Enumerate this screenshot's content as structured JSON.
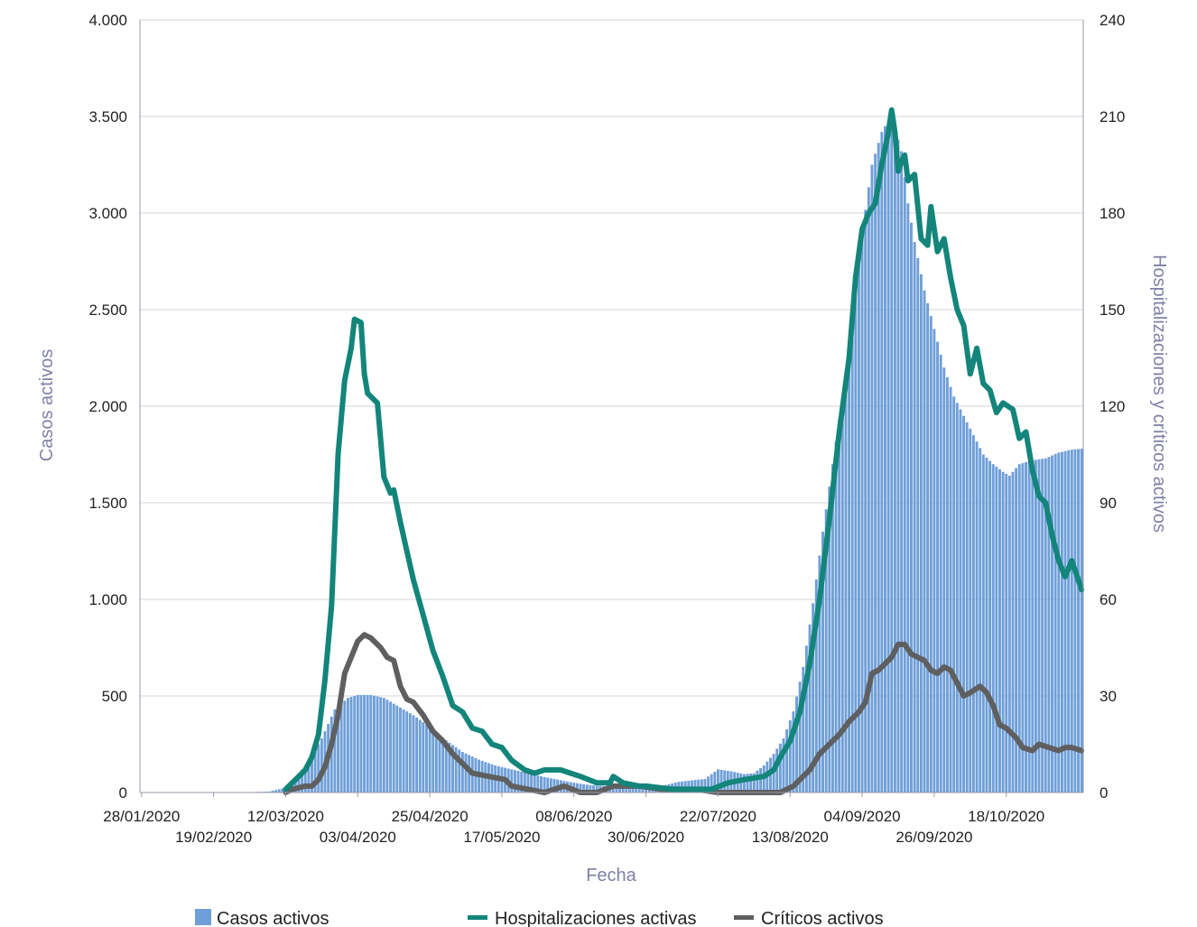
{
  "chart_data": {
    "type": "bar",
    "xlabel": "Fecha",
    "ylabel": "Casos activos",
    "y2label": "Hospitalizaciones y críticos activos",
    "x_start": "28/01/2020",
    "x_end": "10/11/2020",
    "x_tick_labels": [
      "28/01/2020",
      "19/02/2020",
      "12/03/2020",
      "03/04/2020",
      "25/04/2020",
      "17/05/2020",
      "08/06/2020",
      "30/06/2020",
      "22/07/2020",
      "13/08/2020",
      "04/09/2020",
      "26/09/2020",
      "18/10/2020"
    ],
    "ylim": [
      0,
      4000
    ],
    "y_ticks": [
      0,
      500,
      1000,
      1500,
      2000,
      2500,
      3000,
      3500,
      4000
    ],
    "y_tick_labels": [
      "0",
      "500",
      "1.000",
      "1.500",
      "2.000",
      "2.500",
      "3.000",
      "3.500",
      "4.000"
    ],
    "y2lim": [
      0,
      240
    ],
    "y2_ticks": [
      0,
      30,
      60,
      90,
      120,
      150,
      180,
      210,
      240
    ],
    "y2_tick_labels": [
      "0",
      "30",
      "60",
      "90",
      "120",
      "150",
      "180",
      "210",
      "240"
    ],
    "grid": true,
    "legend_position": "bottom",
    "series": [
      {
        "name": "Casos activos",
        "type": "bar",
        "axis": "left",
        "color": "#6f9fd8",
        "points": [
          [
            "28/01/2020",
            0
          ],
          [
            "26/02/2020",
            0
          ],
          [
            "07/03/2020",
            5
          ],
          [
            "12/03/2020",
            25
          ],
          [
            "15/03/2020",
            80
          ],
          [
            "19/03/2020",
            160
          ],
          [
            "23/03/2020",
            280
          ],
          [
            "27/03/2020",
            430
          ],
          [
            "31/03/2020",
            490
          ],
          [
            "03/04/2020",
            505
          ],
          [
            "07/04/2020",
            505
          ],
          [
            "11/04/2020",
            490
          ],
          [
            "15/04/2020",
            450
          ],
          [
            "20/04/2020",
            400
          ],
          [
            "25/04/2020",
            340
          ],
          [
            "30/04/2020",
            270
          ],
          [
            "05/05/2020",
            210
          ],
          [
            "10/05/2020",
            170
          ],
          [
            "15/05/2020",
            140
          ],
          [
            "20/05/2020",
            120
          ],
          [
            "25/05/2020",
            100
          ],
          [
            "30/05/2020",
            80
          ],
          [
            "05/06/2020",
            60
          ],
          [
            "10/06/2020",
            45
          ],
          [
            "15/06/2020",
            35
          ],
          [
            "20/06/2020",
            30
          ],
          [
            "25/06/2020",
            30
          ],
          [
            "30/06/2020",
            25
          ],
          [
            "05/07/2020",
            35
          ],
          [
            "10/07/2020",
            55
          ],
          [
            "15/07/2020",
            65
          ],
          [
            "18/07/2020",
            70
          ],
          [
            "22/07/2020",
            120
          ],
          [
            "26/07/2020",
            110
          ],
          [
            "30/07/2020",
            95
          ],
          [
            "02/08/2020",
            100
          ],
          [
            "05/08/2020",
            140
          ],
          [
            "08/08/2020",
            200
          ],
          [
            "11/08/2020",
            280
          ],
          [
            "14/08/2020",
            420
          ],
          [
            "17/08/2020",
            650
          ],
          [
            "20/08/2020",
            980
          ],
          [
            "23/08/2020",
            1350
          ],
          [
            "26/08/2020",
            1700
          ],
          [
            "29/08/2020",
            2050
          ],
          [
            "01/09/2020",
            2450
          ],
          [
            "04/09/2020",
            2900
          ],
          [
            "07/09/2020",
            3250
          ],
          [
            "10/09/2020",
            3420
          ],
          [
            "12/09/2020",
            3480
          ],
          [
            "14/09/2020",
            3440
          ],
          [
            "16/09/2020",
            3320
          ],
          [
            "18/09/2020",
            3050
          ],
          [
            "20/09/2020",
            2850
          ],
          [
            "23/09/2020",
            2600
          ],
          [
            "26/09/2020",
            2400
          ],
          [
            "29/09/2020",
            2200
          ],
          [
            "02/10/2020",
            2050
          ],
          [
            "05/10/2020",
            1950
          ],
          [
            "08/10/2020",
            1850
          ],
          [
            "11/10/2020",
            1750
          ],
          [
            "14/10/2020",
            1700
          ],
          [
            "17/10/2020",
            1660
          ],
          [
            "19/10/2020",
            1640
          ],
          [
            "22/10/2020",
            1700
          ],
          [
            "26/10/2020",
            1720
          ],
          [
            "30/10/2020",
            1730
          ],
          [
            "03/11/2020",
            1760
          ],
          [
            "07/11/2020",
            1775
          ],
          [
            "10/11/2020",
            1780
          ]
        ]
      },
      {
        "name": "Hospitalizaciones activas",
        "type": "line",
        "axis": "right",
        "color": "#13857a",
        "points": [
          [
            "12/03/2020",
            1
          ],
          [
            "14/03/2020",
            3
          ],
          [
            "16/03/2020",
            5
          ],
          [
            "18/03/2020",
            7
          ],
          [
            "20/03/2020",
            11
          ],
          [
            "22/03/2020",
            18
          ],
          [
            "24/03/2020",
            35
          ],
          [
            "26/03/2020",
            58
          ],
          [
            "28/03/2020",
            105
          ],
          [
            "30/03/2020",
            128
          ],
          [
            "01/04/2020",
            138
          ],
          [
            "02/04/2020",
            147
          ],
          [
            "04/04/2020",
            146
          ],
          [
            "05/04/2020",
            130
          ],
          [
            "06/04/2020",
            124
          ],
          [
            "08/04/2020",
            122
          ],
          [
            "09/04/2020",
            121
          ],
          [
            "11/04/2020",
            98
          ],
          [
            "13/04/2020",
            93
          ],
          [
            "14/04/2020",
            94
          ],
          [
            "16/04/2020",
            84
          ],
          [
            "18/04/2020",
            75
          ],
          [
            "20/04/2020",
            66
          ],
          [
            "23/04/2020",
            55
          ],
          [
            "26/04/2020",
            44
          ],
          [
            "29/04/2020",
            36
          ],
          [
            "02/05/2020",
            27
          ],
          [
            "05/05/2020",
            25
          ],
          [
            "08/05/2020",
            20
          ],
          [
            "11/05/2020",
            19
          ],
          [
            "14/05/2020",
            15
          ],
          [
            "17/05/2020",
            14
          ],
          [
            "20/05/2020",
            10
          ],
          [
            "24/05/2020",
            7
          ],
          [
            "27/05/2020",
            6
          ],
          [
            "30/05/2020",
            7
          ],
          [
            "04/06/2020",
            7
          ],
          [
            "07/06/2020",
            6
          ],
          [
            "10/06/2020",
            5
          ],
          [
            "15/06/2020",
            3
          ],
          [
            "19/06/2020",
            3
          ],
          [
            "20/06/2020",
            5
          ],
          [
            "23/06/2020",
            3
          ],
          [
            "28/06/2020",
            2
          ],
          [
            "30/06/2020",
            2
          ],
          [
            "08/07/2020",
            1
          ],
          [
            "20/07/2020",
            1
          ],
          [
            "25/07/2020",
            3
          ],
          [
            "30/07/2020",
            4
          ],
          [
            "05/08/2020",
            5
          ],
          [
            "08/08/2020",
            7
          ],
          [
            "10/08/2020",
            11
          ],
          [
            "13/08/2020",
            16
          ],
          [
            "16/08/2020",
            25
          ],
          [
            "19/08/2020",
            40
          ],
          [
            "22/08/2020",
            60
          ],
          [
            "25/08/2020",
            85
          ],
          [
            "28/08/2020",
            112
          ],
          [
            "31/08/2020",
            135
          ],
          [
            "02/09/2020",
            160
          ],
          [
            "04/09/2020",
            175
          ],
          [
            "06/09/2020",
            180
          ],
          [
            "08/09/2020",
            183
          ],
          [
            "10/09/2020",
            195
          ],
          [
            "12/09/2020",
            205
          ],
          [
            "13/09/2020",
            212
          ],
          [
            "14/09/2020",
            205
          ],
          [
            "15/09/2020",
            193
          ],
          [
            "16/09/2020",
            196
          ],
          [
            "17/09/2020",
            198
          ],
          [
            "18/09/2020",
            190
          ],
          [
            "20/09/2020",
            192
          ],
          [
            "22/09/2020",
            172
          ],
          [
            "24/09/2020",
            170
          ],
          [
            "25/09/2020",
            182
          ],
          [
            "27/09/2020",
            168
          ],
          [
            "29/09/2020",
            172
          ],
          [
            "01/10/2020",
            160
          ],
          [
            "03/10/2020",
            150
          ],
          [
            "05/10/2020",
            145
          ],
          [
            "07/10/2020",
            130
          ],
          [
            "09/10/2020",
            138
          ],
          [
            "11/10/2020",
            127
          ],
          [
            "13/10/2020",
            125
          ],
          [
            "15/10/2020",
            118
          ],
          [
            "17/10/2020",
            121
          ],
          [
            "20/10/2020",
            119
          ],
          [
            "22/10/2020",
            110
          ],
          [
            "24/10/2020",
            112
          ],
          [
            "26/10/2020",
            100
          ],
          [
            "28/10/2020",
            92
          ],
          [
            "30/10/2020",
            90
          ],
          [
            "01/11/2020",
            80
          ],
          [
            "03/11/2020",
            72
          ],
          [
            "05/11/2020",
            67
          ],
          [
            "07/11/2020",
            72
          ],
          [
            "09/11/2020",
            66
          ],
          [
            "10/11/2020",
            63
          ]
        ]
      },
      {
        "name": "Críticos activos",
        "type": "line",
        "axis": "right",
        "color": "#5f5f5f",
        "points": [
          [
            "12/03/2020",
            0
          ],
          [
            "14/03/2020",
            1
          ],
          [
            "18/03/2020",
            2
          ],
          [
            "20/03/2020",
            2
          ],
          [
            "22/03/2020",
            4
          ],
          [
            "24/03/2020",
            8
          ],
          [
            "26/03/2020",
            15
          ],
          [
            "28/03/2020",
            24
          ],
          [
            "30/03/2020",
            37
          ],
          [
            "01/04/2020",
            42
          ],
          [
            "03/04/2020",
            47
          ],
          [
            "05/04/2020",
            49
          ],
          [
            "07/04/2020",
            48
          ],
          [
            "10/04/2020",
            45
          ],
          [
            "12/04/2020",
            42
          ],
          [
            "14/04/2020",
            41
          ],
          [
            "16/04/2020",
            33
          ],
          [
            "18/04/2020",
            29
          ],
          [
            "20/04/2020",
            28
          ],
          [
            "23/04/2020",
            24
          ],
          [
            "26/04/2020",
            19
          ],
          [
            "29/04/2020",
            16
          ],
          [
            "02/05/2020",
            12
          ],
          [
            "05/05/2020",
            9
          ],
          [
            "08/05/2020",
            6
          ],
          [
            "13/05/2020",
            5
          ],
          [
            "18/05/2020",
            4
          ],
          [
            "20/05/2020",
            2
          ],
          [
            "25/05/2020",
            1
          ],
          [
            "30/05/2020",
            0
          ],
          [
            "05/06/2020",
            2
          ],
          [
            "10/06/2020",
            0
          ],
          [
            "15/06/2020",
            0
          ],
          [
            "20/06/2020",
            2
          ],
          [
            "28/06/2020",
            2
          ],
          [
            "05/07/2020",
            1
          ],
          [
            "15/07/2020",
            1
          ],
          [
            "22/07/2020",
            0
          ],
          [
            "30/07/2020",
            0
          ],
          [
            "06/08/2020",
            0
          ],
          [
            "10/08/2020",
            0
          ],
          [
            "14/08/2020",
            2
          ],
          [
            "16/08/2020",
            4
          ],
          [
            "19/08/2020",
            7
          ],
          [
            "22/08/2020",
            12
          ],
          [
            "25/08/2020",
            15
          ],
          [
            "28/08/2020",
            18
          ],
          [
            "31/08/2020",
            22
          ],
          [
            "03/09/2020",
            25
          ],
          [
            "05/09/2020",
            28
          ],
          [
            "07/09/2020",
            37
          ],
          [
            "09/09/2020",
            38
          ],
          [
            "11/09/2020",
            40
          ],
          [
            "13/09/2020",
            42
          ],
          [
            "15/09/2020",
            46
          ],
          [
            "17/09/2020",
            46
          ],
          [
            "19/09/2020",
            43
          ],
          [
            "21/09/2020",
            42
          ],
          [
            "23/09/2020",
            41
          ],
          [
            "25/09/2020",
            38
          ],
          [
            "27/09/2020",
            37
          ],
          [
            "29/09/2020",
            39
          ],
          [
            "01/10/2020",
            38
          ],
          [
            "03/10/2020",
            34
          ],
          [
            "05/10/2020",
            30
          ],
          [
            "07/10/2020",
            31
          ],
          [
            "10/10/2020",
            33
          ],
          [
            "12/10/2020",
            31
          ],
          [
            "14/10/2020",
            27
          ],
          [
            "16/10/2020",
            21
          ],
          [
            "18/10/2020",
            20
          ],
          [
            "21/10/2020",
            17
          ],
          [
            "23/10/2020",
            14
          ],
          [
            "26/10/2020",
            13
          ],
          [
            "28/10/2020",
            15
          ],
          [
            "31/10/2020",
            14
          ],
          [
            "03/11/2020",
            13
          ],
          [
            "05/11/2020",
            14
          ],
          [
            "07/11/2020",
            14
          ],
          [
            "10/11/2020",
            13
          ]
        ]
      }
    ]
  }
}
